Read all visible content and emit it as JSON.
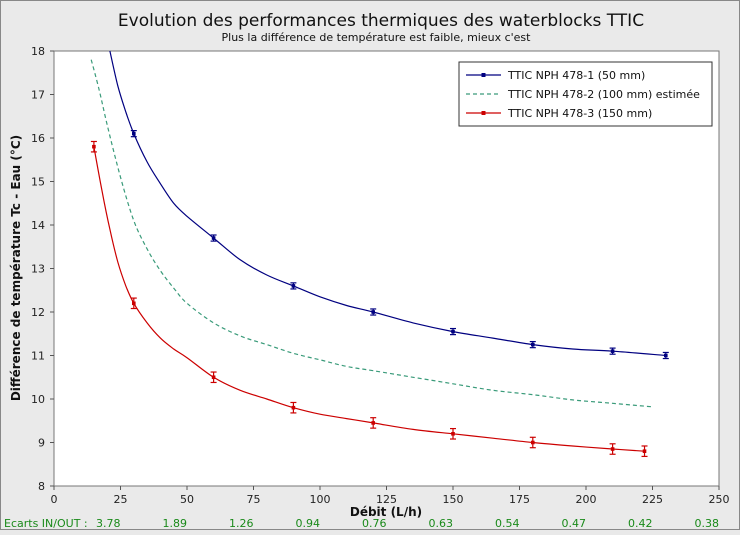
{
  "chart_data": {
    "type": "line",
    "title": "Evolution des performances thermiques des waterblocks TTIC",
    "subtitle": "Plus la différence de température est faible, mieux c'est",
    "xlabel": "Débit (L/h)",
    "ylabel": "Différence de température Tc - Eau (°C)",
    "xlim": [
      0,
      250
    ],
    "ylim": [
      8,
      18
    ],
    "xticks": [
      0,
      25,
      50,
      75,
      100,
      125,
      150,
      175,
      200,
      225,
      250
    ],
    "yticks": [
      8,
      9,
      10,
      11,
      12,
      13,
      14,
      15,
      16,
      17,
      18
    ],
    "grid": false,
    "legend_position": "top-right",
    "series": [
      {
        "name": "TTIC NPH 478-1 (50 mm)",
        "color": "#000080",
        "style": "solid",
        "markers": true,
        "error_bars": true,
        "x": [
          30,
          60,
          90,
          120,
          150,
          180,
          210,
          230
        ],
        "y": [
          16.1,
          13.7,
          12.6,
          12.0,
          11.55,
          11.25,
          11.1,
          11.0
        ],
        "error": [
          0.07,
          0.07,
          0.07,
          0.07,
          0.07,
          0.07,
          0.07,
          0.07
        ],
        "fit_x": [
          21,
          24,
          27,
          30,
          35,
          40,
          45,
          50,
          60,
          70,
          80,
          90,
          100,
          110,
          120,
          135,
          150,
          165,
          180,
          195,
          210,
          230
        ],
        "fit_y": [
          18.0,
          17.2,
          16.6,
          16.1,
          15.45,
          14.95,
          14.5,
          14.2,
          13.7,
          13.2,
          12.85,
          12.6,
          12.35,
          12.15,
          12.0,
          11.75,
          11.55,
          11.4,
          11.25,
          11.15,
          11.1,
          11.0
        ]
      },
      {
        "name": "TTIC NPH 478-2 (100 mm) estimée",
        "color": "#3a9b7a",
        "style": "dashed",
        "markers": false,
        "error_bars": false,
        "fit_x": [
          14,
          17,
          20,
          25,
          30,
          35,
          40,
          45,
          50,
          60,
          70,
          80,
          90,
          100,
          110,
          120,
          135,
          150,
          165,
          180,
          195,
          210,
          225
        ],
        "fit_y": [
          17.8,
          17.1,
          16.3,
          15.1,
          14.1,
          13.45,
          12.95,
          12.55,
          12.2,
          11.75,
          11.45,
          11.25,
          11.05,
          10.9,
          10.75,
          10.65,
          10.5,
          10.35,
          10.2,
          10.1,
          9.98,
          9.9,
          9.82
        ]
      },
      {
        "name": "TTIC NPH 478-3 (150 mm)",
        "color": "#cc0000",
        "style": "solid",
        "markers": true,
        "error_bars": true,
        "x": [
          15,
          30,
          60,
          90,
          120,
          150,
          180,
          210,
          222
        ],
        "y": [
          15.8,
          12.2,
          10.5,
          9.8,
          9.45,
          9.2,
          9.0,
          8.85,
          8.8
        ],
        "error": [
          0.12,
          0.12,
          0.12,
          0.12,
          0.12,
          0.12,
          0.12,
          0.12,
          0.12
        ],
        "fit_x": [
          15,
          18,
          21,
          24,
          27,
          30,
          35,
          40,
          45,
          50,
          60,
          70,
          80,
          90,
          100,
          110,
          120,
          135,
          150,
          165,
          180,
          195,
          210,
          222
        ],
        "fit_y": [
          15.8,
          14.8,
          13.9,
          13.15,
          12.6,
          12.2,
          11.75,
          11.4,
          11.15,
          10.95,
          10.5,
          10.2,
          10.0,
          9.8,
          9.65,
          9.55,
          9.45,
          9.3,
          9.2,
          9.1,
          9.0,
          8.92,
          8.85,
          8.8
        ]
      }
    ],
    "footer": {
      "label": "Ecarts IN/OUT :",
      "values": [
        "3.78",
        "1.89",
        "1.26",
        "0.94",
        "0.76",
        "0.63",
        "0.54",
        "0.47",
        "0.42",
        "0.38"
      ]
    }
  }
}
